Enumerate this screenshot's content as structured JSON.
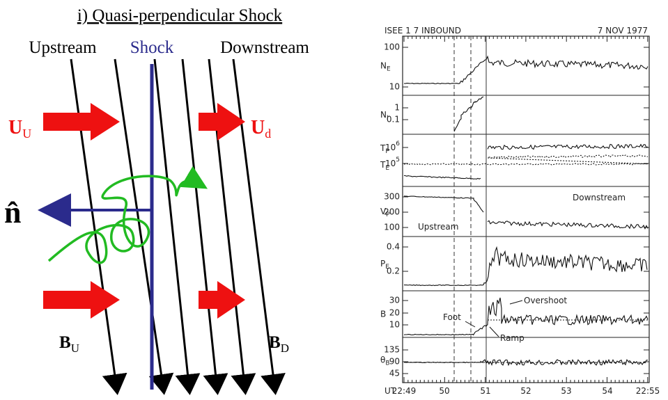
{
  "left": {
    "title": "i) Quasi-perpendicular Shock",
    "upstream": "Upstream",
    "shock": "Shock",
    "downstream": "Downstream",
    "u_upstream": {
      "symbol": "U",
      "sub": "U"
    },
    "u_downstream": {
      "symbol": "U",
      "sub": "d"
    },
    "normal": "n̂",
    "b_upstream": {
      "symbol": "B",
      "sub": "U"
    },
    "b_downstream": {
      "symbol": "B",
      "sub": "D"
    }
  },
  "right": {
    "header_left": "ISEE 1  7 INBOUND",
    "header_right": "7 NOV 1977",
    "panels": [
      {
        "labels": [
          {
            "symbol": "N",
            "sub": "E"
          }
        ],
        "ticks": [
          "100",
          "10"
        ]
      },
      {
        "labels": [
          {
            "symbol": "N",
            "sub": "I"
          }
        ],
        "ticks": [
          "1",
          "0.1"
        ]
      },
      {
        "labels": [
          {
            "symbol": "T",
            "sub": "P"
          },
          {
            "symbol": "T",
            "sub": "E"
          }
        ],
        "ticks": [
          {
            "base": "10",
            "exp": "6"
          },
          {
            "base": "10",
            "exp": "5"
          }
        ]
      },
      {
        "labels": [
          {
            "symbol": "V",
            "sub": "P"
          }
        ],
        "ticks": [
          "300",
          "200",
          "100"
        ]
      },
      {
        "labels": [
          {
            "symbol": "P",
            "sub": "E"
          }
        ],
        "ticks": [
          "0.4",
          "0.2"
        ]
      },
      {
        "labels": [
          {
            "symbol": "B",
            "sub": ""
          }
        ],
        "ticks": [
          "30",
          "20",
          "10"
        ]
      },
      {
        "labels": [
          {
            "symbol": "θ",
            "sub": "B"
          }
        ],
        "ticks": [
          "135",
          "90",
          "45"
        ]
      }
    ],
    "annotations": {
      "downstream": "Downstream",
      "upstream": "Upstream",
      "overshoot": "Overshoot",
      "foot": "Foot",
      "ramp": "Ramp"
    },
    "x_axis": [
      "UT",
      "22:49",
      "50",
      "51",
      "52",
      "53",
      "54",
      "22:55"
    ]
  }
}
